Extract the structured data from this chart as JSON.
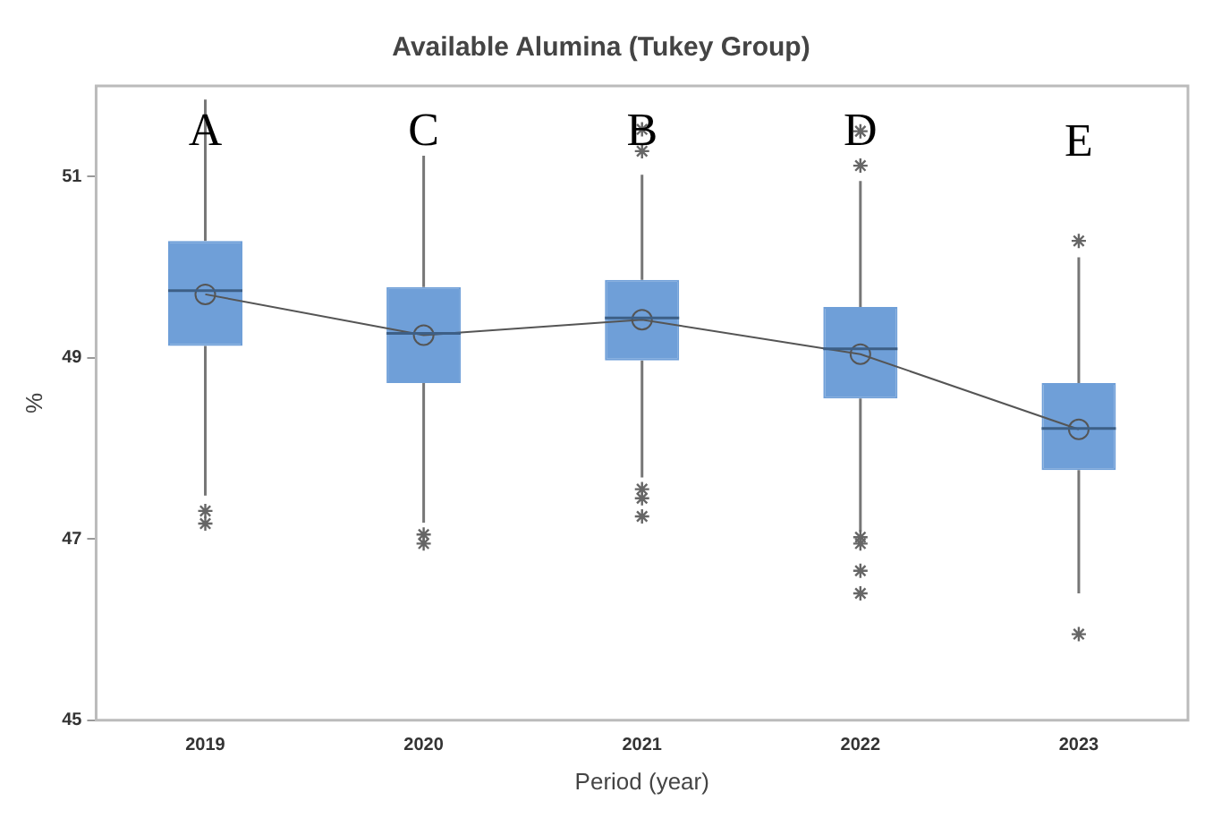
{
  "chart_data": {
    "type": "box",
    "title": "Available Alumina (Tukey Group)",
    "xlabel": "Period (year)",
    "ylabel": "%",
    "categories": [
      "2019",
      "2020",
      "2021",
      "2022",
      "2023"
    ],
    "color": "#6f9fd8",
    "boxes": [
      {
        "low": 47.48,
        "q1": 49.13,
        "median": 49.74,
        "q3": 50.29,
        "high": 51.85,
        "outliers": [
          47.31,
          47.17
        ]
      },
      {
        "low": 47.18,
        "q1": 48.72,
        "median": 49.27,
        "q3": 49.78,
        "high": 51.23,
        "outliers": [
          47.05,
          46.95
        ]
      },
      {
        "low": 47.68,
        "q1": 48.97,
        "median": 49.44,
        "q3": 49.86,
        "high": 51.02,
        "outliers": [
          51.52,
          51.28,
          47.55,
          47.45,
          47.25
        ]
      },
      {
        "low": 47.08,
        "q1": 48.55,
        "median": 49.1,
        "q3": 49.56,
        "high": 50.95,
        "outliers": [
          51.5,
          51.12,
          47.02,
          46.95,
          46.65,
          46.4
        ]
      },
      {
        "low": 46.4,
        "q1": 47.76,
        "median": 48.22,
        "q3": 48.72,
        "high": 50.11,
        "outliers": [
          50.29,
          45.95
        ]
      }
    ],
    "series": [
      {
        "type": "line",
        "color": "#555555",
        "marker": "circle",
        "values": [
          49.7,
          49.25,
          49.42,
          49.04,
          48.21
        ]
      }
    ],
    "ylim": [
      45,
      52
    ],
    "yticks": [
      45,
      47,
      49,
      51
    ],
    "grid": false,
    "annotations": [
      "A",
      "C",
      "B",
      "D",
      "E"
    ]
  }
}
